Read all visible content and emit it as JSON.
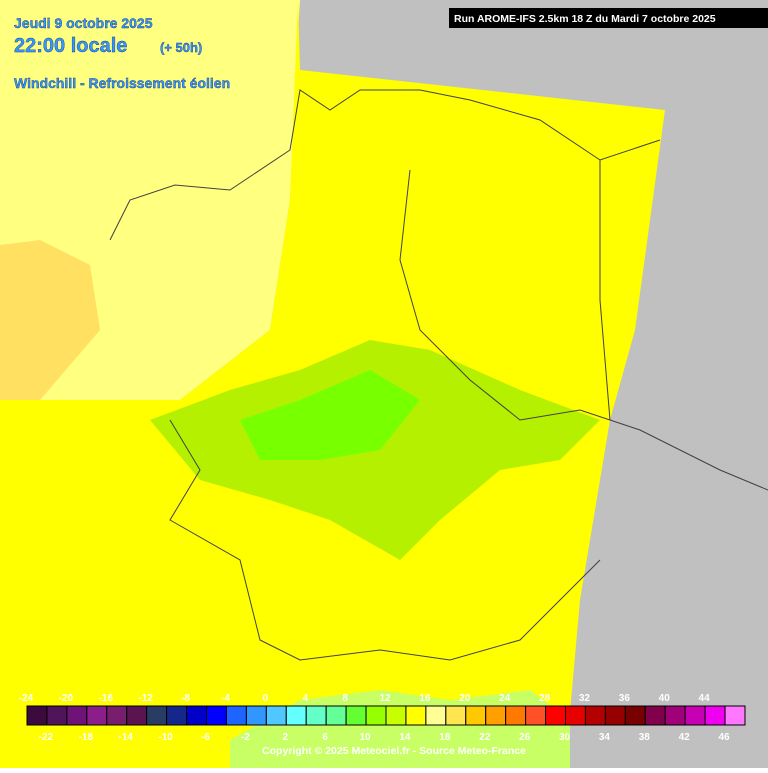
{
  "header": {
    "date": "Jeudi 9 octobre 2025",
    "time": "22:00 locale",
    "lead": "(+ 50h)",
    "parameter": "Windchill - Refroissement éolien",
    "run": "Run AROME-IFS 2.5km 18 Z du Mardi 7 octobre 2025"
  },
  "legend": {
    "values": [
      -24,
      -22,
      -20,
      -18,
      -16,
      -14,
      -12,
      -10,
      -8,
      -6,
      -4,
      -2,
      0,
      2,
      4,
      6,
      8,
      10,
      12,
      14,
      16,
      18,
      20,
      22,
      24,
      26,
      28,
      30,
      32,
      34,
      36,
      38,
      40,
      42,
      44,
      46
    ],
    "colors": [
      "#3c0a3c",
      "#50145a",
      "#6e1478",
      "#8c1e8c",
      "#781e6e",
      "#5a1450",
      "#283c64",
      "#14288c",
      "#0000c8",
      "#0000ff",
      "#1e64ff",
      "#3296ff",
      "#50c8ff",
      "#64ffff",
      "#64ffc8",
      "#64ff96",
      "#64ff32",
      "#96ff00",
      "#c8ff00",
      "#ffff00",
      "#ffff96",
      "#ffe650",
      "#ffc800",
      "#ffa000",
      "#ff7800",
      "#ff5028",
      "#ff0000",
      "#e60000",
      "#b40000",
      "#960000",
      "#780000",
      "#82004b",
      "#a00078",
      "#c800b4",
      "#f000f0",
      "#ff78ff"
    ]
  },
  "footer": {
    "copyright": "Copyright © 2025 Meteociel.fr - Source Meteo-France"
  }
}
